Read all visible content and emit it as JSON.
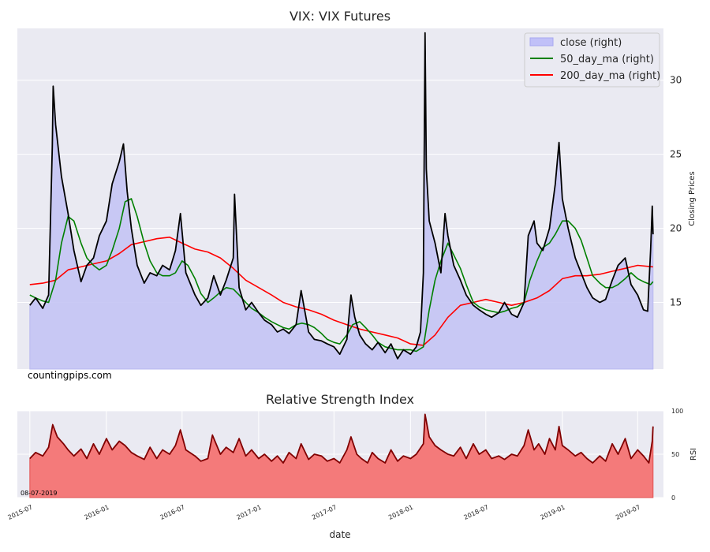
{
  "watermark": "countingpips.com",
  "date_stamp": "08-07-2019",
  "chart_data": [
    {
      "type": "area",
      "title": "VIX: VIX Futures",
      "ylabel": "Closing Prices",
      "ylabel_side": "right",
      "xlim": [
        "2015-06-01",
        "2019-09-01"
      ],
      "ylim": [
        10.5,
        33.5
      ],
      "yticks": [
        15,
        20,
        25,
        30
      ],
      "grid": true,
      "legend_position": "top-right",
      "colors": {
        "background": "#EAEAF2",
        "grid": "#FFFFFF",
        "close_fill": "#C4C4F4",
        "close_line": "#000000",
        "ma50": "#008000",
        "ma200": "#FF0000",
        "legend_patch": "#C0C0F8"
      },
      "series": [
        {
          "name": "close (right)",
          "x": [
            "2015-07-01",
            "2015-07-15",
            "2015-08-01",
            "2015-08-15",
            "2015-08-24",
            "2015-08-26",
            "2015-09-01",
            "2015-09-15",
            "2015-10-01",
            "2015-10-15",
            "2015-11-01",
            "2015-11-15",
            "2015-12-01",
            "2015-12-15",
            "2016-01-01",
            "2016-01-15",
            "2016-02-01",
            "2016-02-11",
            "2016-02-20",
            "2016-03-01",
            "2016-03-15",
            "2016-04-01",
            "2016-04-15",
            "2016-05-01",
            "2016-05-15",
            "2016-06-01",
            "2016-06-15",
            "2016-06-27",
            "2016-07-10",
            "2016-08-01",
            "2016-08-15",
            "2016-09-01",
            "2016-09-15",
            "2016-10-01",
            "2016-10-15",
            "2016-11-01",
            "2016-11-04",
            "2016-11-15",
            "2016-12-01",
            "2016-12-15",
            "2017-01-01",
            "2017-01-15",
            "2017-02-01",
            "2017-02-15",
            "2017-03-01",
            "2017-03-15",
            "2017-04-01",
            "2017-04-13",
            "2017-05-01",
            "2017-05-15",
            "2017-06-01",
            "2017-06-15",
            "2017-07-01",
            "2017-07-15",
            "2017-08-01",
            "2017-08-11",
            "2017-08-20",
            "2017-09-01",
            "2017-09-15",
            "2017-10-01",
            "2017-10-15",
            "2017-11-01",
            "2017-11-15",
            "2017-12-01",
            "2017-12-15",
            "2018-01-01",
            "2018-01-15",
            "2018-01-25",
            "2018-02-01",
            "2018-02-05",
            "2018-02-08",
            "2018-02-15",
            "2018-03-01",
            "2018-03-15",
            "2018-03-25",
            "2018-04-01",
            "2018-04-15",
            "2018-05-01",
            "2018-05-15",
            "2018-06-01",
            "2018-06-15",
            "2018-07-01",
            "2018-07-15",
            "2018-08-01",
            "2018-08-15",
            "2018-09-01",
            "2018-09-15",
            "2018-10-01",
            "2018-10-11",
            "2018-10-25",
            "2018-11-01",
            "2018-11-15",
            "2018-12-01",
            "2018-12-15",
            "2018-12-24",
            "2019-01-01",
            "2019-01-15",
            "2019-02-01",
            "2019-02-15",
            "2019-03-01",
            "2019-03-15",
            "2019-04-01",
            "2019-04-15",
            "2019-05-01",
            "2019-05-15",
            "2019-06-01",
            "2019-06-15",
            "2019-07-01",
            "2019-07-15",
            "2019-07-25",
            "2019-08-01",
            "2019-08-05",
            "2019-08-07"
          ],
          "values": [
            14.8,
            15.3,
            14.6,
            15.5,
            25.5,
            29.6,
            27.0,
            23.5,
            21.0,
            18.5,
            16.4,
            17.5,
            18.0,
            19.5,
            20.5,
            23.0,
            24.5,
            25.7,
            22.5,
            20.0,
            17.5,
            16.3,
            17.0,
            16.8,
            17.5,
            17.2,
            18.5,
            21.0,
            17.0,
            15.5,
            14.8,
            15.3,
            16.8,
            15.5,
            16.5,
            18.0,
            22.3,
            16.0,
            14.5,
            15.0,
            14.3,
            13.8,
            13.5,
            13.0,
            13.2,
            12.9,
            13.5,
            15.8,
            13.0,
            12.5,
            12.4,
            12.2,
            12.0,
            11.5,
            12.5,
            15.5,
            14.0,
            12.8,
            12.2,
            11.8,
            12.3,
            11.6,
            12.2,
            11.2,
            11.8,
            11.5,
            12.0,
            13.0,
            17.0,
            33.2,
            24.0,
            20.5,
            19.0,
            17.0,
            21.0,
            19.5,
            17.5,
            16.5,
            15.5,
            14.8,
            14.5,
            14.2,
            14.0,
            14.3,
            15.0,
            14.2,
            14.0,
            15.0,
            19.5,
            20.5,
            19.0,
            18.5,
            20.0,
            23.0,
            25.8,
            22.0,
            20.0,
            18.0,
            17.0,
            16.0,
            15.3,
            15.0,
            15.2,
            16.5,
            17.5,
            18.0,
            16.2,
            15.5,
            14.5,
            14.4,
            18.5,
            21.5,
            19.6
          ]
        },
        {
          "name": "50_day_ma (right)",
          "x": [
            "2015-07-01",
            "2015-07-15",
            "2015-08-01",
            "2015-08-15",
            "2015-09-01",
            "2015-09-15",
            "2015-10-01",
            "2015-10-15",
            "2015-11-01",
            "2015-11-15",
            "2015-12-01",
            "2015-12-15",
            "2016-01-01",
            "2016-01-15",
            "2016-02-01",
            "2016-02-15",
            "2016-03-01",
            "2016-03-15",
            "2016-04-01",
            "2016-04-15",
            "2016-05-01",
            "2016-05-15",
            "2016-06-01",
            "2016-06-15",
            "2016-07-01",
            "2016-07-15",
            "2016-08-01",
            "2016-08-15",
            "2016-09-01",
            "2016-09-15",
            "2016-10-01",
            "2016-10-15",
            "2016-11-01",
            "2016-11-15",
            "2016-12-01",
            "2016-12-15",
            "2017-01-01",
            "2017-01-15",
            "2017-02-01",
            "2017-02-15",
            "2017-03-01",
            "2017-03-15",
            "2017-04-01",
            "2017-04-15",
            "2017-05-01",
            "2017-05-15",
            "2017-06-01",
            "2017-06-15",
            "2017-07-01",
            "2017-07-15",
            "2017-08-01",
            "2017-08-15",
            "2017-09-01",
            "2017-09-15",
            "2017-10-01",
            "2017-10-15",
            "2017-11-01",
            "2017-11-15",
            "2017-12-01",
            "2017-12-15",
            "2018-01-01",
            "2018-01-15",
            "2018-02-01",
            "2018-02-15",
            "2018-03-01",
            "2018-03-15",
            "2018-04-01",
            "2018-04-15",
            "2018-05-01",
            "2018-05-15",
            "2018-06-01",
            "2018-06-15",
            "2018-07-01",
            "2018-07-15",
            "2018-08-01",
            "2018-08-15",
            "2018-09-01",
            "2018-09-15",
            "2018-10-01",
            "2018-10-15",
            "2018-11-01",
            "2018-11-15",
            "2018-12-01",
            "2018-12-15",
            "2019-01-01",
            "2019-01-15",
            "2019-02-01",
            "2019-02-15",
            "2019-03-01",
            "2019-03-15",
            "2019-04-01",
            "2019-04-15",
            "2019-05-01",
            "2019-05-15",
            "2019-06-01",
            "2019-06-15",
            "2019-07-01",
            "2019-07-15",
            "2019-08-01",
            "2019-08-07"
          ],
          "values": [
            15.5,
            15.3,
            15.1,
            15.0,
            16.5,
            19.0,
            20.8,
            20.5,
            19.0,
            18.0,
            17.5,
            17.2,
            17.5,
            18.5,
            20.0,
            21.8,
            22.0,
            20.8,
            19.0,
            17.8,
            17.0,
            16.8,
            16.8,
            17.0,
            17.8,
            17.5,
            16.6,
            15.6,
            15.0,
            15.3,
            15.7,
            16.0,
            15.9,
            15.5,
            15.0,
            14.6,
            14.3,
            14.0,
            13.7,
            13.5,
            13.3,
            13.2,
            13.5,
            13.6,
            13.5,
            13.3,
            12.9,
            12.5,
            12.3,
            12.2,
            12.8,
            13.5,
            13.7,
            13.3,
            12.8,
            12.3,
            12.0,
            11.9,
            11.8,
            11.8,
            11.8,
            11.7,
            12.0,
            14.5,
            16.5,
            17.8,
            19.0,
            18.2,
            17.3,
            16.2,
            15.0,
            14.7,
            14.5,
            14.4,
            14.3,
            14.4,
            14.6,
            14.7,
            15.0,
            16.5,
            17.8,
            18.7,
            19.0,
            19.6,
            20.5,
            20.5,
            20.0,
            19.2,
            18.0,
            16.8,
            16.3,
            16.0,
            16.0,
            16.2,
            16.6,
            17.0,
            16.6,
            16.4,
            16.2,
            16.4
          ]
        },
        {
          "name": "200_day_ma (right)",
          "x": [
            "2015-07-01",
            "2015-08-01",
            "2015-09-01",
            "2015-10-01",
            "2015-11-01",
            "2015-12-01",
            "2016-01-01",
            "2016-02-01",
            "2016-03-01",
            "2016-04-01",
            "2016-05-01",
            "2016-06-01",
            "2016-07-01",
            "2016-08-01",
            "2016-09-01",
            "2016-10-01",
            "2016-11-01",
            "2016-12-01",
            "2017-01-01",
            "2017-02-01",
            "2017-03-01",
            "2017-04-01",
            "2017-05-01",
            "2017-06-01",
            "2017-07-01",
            "2017-08-01",
            "2017-09-01",
            "2017-10-01",
            "2017-11-01",
            "2017-12-01",
            "2018-01-01",
            "2018-02-01",
            "2018-03-01",
            "2018-04-01",
            "2018-05-01",
            "2018-06-01",
            "2018-07-01",
            "2018-08-01",
            "2018-09-01",
            "2018-10-01",
            "2018-11-01",
            "2018-12-01",
            "2019-01-01",
            "2019-02-01",
            "2019-03-01",
            "2019-04-01",
            "2019-05-01",
            "2019-06-01",
            "2019-07-01",
            "2019-08-07"
          ],
          "values": [
            16.2,
            16.3,
            16.5,
            17.2,
            17.4,
            17.6,
            17.8,
            18.3,
            18.9,
            19.1,
            19.3,
            19.4,
            19.0,
            18.6,
            18.4,
            18.0,
            17.3,
            16.5,
            16.0,
            15.5,
            15.0,
            14.7,
            14.5,
            14.2,
            13.8,
            13.5,
            13.2,
            13.0,
            12.8,
            12.6,
            12.2,
            12.1,
            12.8,
            14.0,
            14.8,
            15.0,
            15.2,
            15.0,
            14.8,
            15.0,
            15.3,
            15.8,
            16.6,
            16.8,
            16.8,
            16.9,
            17.1,
            17.3,
            17.5,
            17.4
          ]
        }
      ]
    },
    {
      "type": "area",
      "title": "Relative Strength Index",
      "ylabel": "RSI",
      "ylabel_side": "right",
      "xlabel": "date",
      "xlim": [
        "2015-06-01",
        "2019-09-01"
      ],
      "ylim": [
        0,
        100
      ],
      "yticks": [
        0,
        50,
        100
      ],
      "xtick_labels": [
        "2015-07",
        "2016-01",
        "2016-07",
        "2017-01",
        "2017-07",
        "2018-01",
        "2018-07",
        "2019-01",
        "2019-07"
      ],
      "grid": true,
      "colors": {
        "background": "#EAEAF2",
        "grid": "#FFFFFF",
        "fill": "#F47A7A",
        "line": "#800000"
      },
      "series": [
        {
          "name": "RSI",
          "x": [
            "2015-07-01",
            "2015-07-15",
            "2015-08-01",
            "2015-08-15",
            "2015-08-25",
            "2015-09-05",
            "2015-09-20",
            "2015-10-01",
            "2015-10-15",
            "2015-11-01",
            "2015-11-15",
            "2015-12-01",
            "2015-12-15",
            "2016-01-01",
            "2016-01-15",
            "2016-02-01",
            "2016-02-15",
            "2016-03-01",
            "2016-03-15",
            "2016-04-01",
            "2016-04-15",
            "2016-05-01",
            "2016-05-15",
            "2016-06-01",
            "2016-06-15",
            "2016-06-27",
            "2016-07-10",
            "2016-08-01",
            "2016-08-15",
            "2016-09-01",
            "2016-09-12",
            "2016-10-01",
            "2016-10-15",
            "2016-11-01",
            "2016-11-15",
            "2016-12-01",
            "2016-12-15",
            "2017-01-01",
            "2017-01-15",
            "2017-02-01",
            "2017-02-15",
            "2017-03-01",
            "2017-03-15",
            "2017-04-01",
            "2017-04-13",
            "2017-05-01",
            "2017-05-15",
            "2017-06-01",
            "2017-06-15",
            "2017-07-01",
            "2017-07-15",
            "2017-08-01",
            "2017-08-11",
            "2017-08-25",
            "2017-09-05",
            "2017-09-20",
            "2017-10-01",
            "2017-10-15",
            "2017-11-01",
            "2017-11-15",
            "2017-12-01",
            "2017-12-15",
            "2018-01-01",
            "2018-01-15",
            "2018-02-01",
            "2018-02-05",
            "2018-02-15",
            "2018-03-01",
            "2018-03-15",
            "2018-04-01",
            "2018-04-15",
            "2018-05-01",
            "2018-05-15",
            "2018-06-01",
            "2018-06-15",
            "2018-07-01",
            "2018-07-15",
            "2018-08-01",
            "2018-08-15",
            "2018-09-01",
            "2018-09-15",
            "2018-10-01",
            "2018-10-11",
            "2018-10-25",
            "2018-11-05",
            "2018-11-20",
            "2018-12-01",
            "2018-12-15",
            "2018-12-24",
            "2019-01-01",
            "2019-01-15",
            "2019-02-01",
            "2019-02-15",
            "2019-03-01",
            "2019-03-15",
            "2019-04-01",
            "2019-04-15",
            "2019-05-01",
            "2019-05-15",
            "2019-06-01",
            "2019-06-15",
            "2019-07-01",
            "2019-07-15",
            "2019-07-28",
            "2019-08-05",
            "2019-08-07"
          ],
          "values": [
            45,
            52,
            48,
            58,
            84,
            70,
            62,
            55,
            48,
            56,
            45,
            62,
            50,
            68,
            55,
            65,
            60,
            52,
            48,
            44,
            58,
            45,
            55,
            50,
            60,
            78,
            55,
            48,
            42,
            45,
            72,
            50,
            58,
            52,
            68,
            48,
            55,
            45,
            50,
            42,
            48,
            40,
            52,
            45,
            62,
            44,
            50,
            48,
            42,
            45,
            40,
            55,
            70,
            50,
            45,
            40,
            52,
            45,
            40,
            55,
            42,
            48,
            45,
            50,
            62,
            96,
            70,
            60,
            55,
            50,
            48,
            58,
            45,
            62,
            50,
            55,
            45,
            48,
            44,
            50,
            48,
            60,
            78,
            55,
            62,
            50,
            68,
            55,
            82,
            60,
            55,
            48,
            52,
            45,
            40,
            48,
            42,
            62,
            50,
            68,
            45,
            55,
            48,
            40,
            65,
            82
          ]
        }
      ]
    }
  ]
}
